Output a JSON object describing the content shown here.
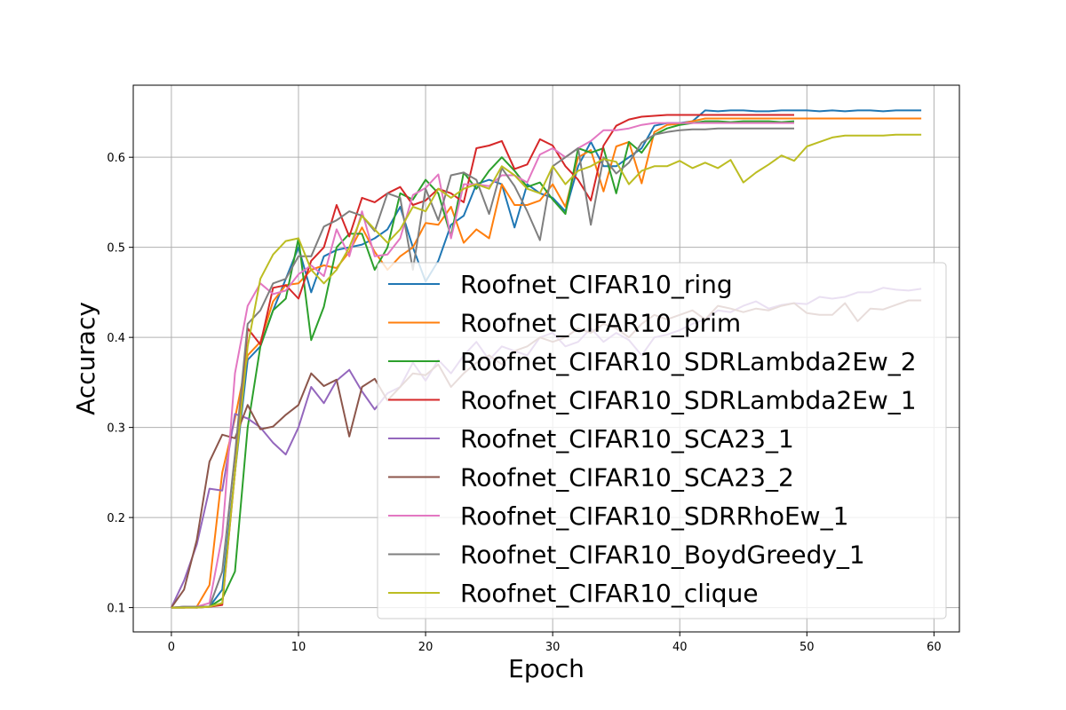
{
  "chart_data": {
    "type": "line",
    "title": "",
    "xlabel": "Epoch",
    "ylabel": "Accuracy",
    "xlim": [
      -3,
      62
    ],
    "ylim": [
      0.073,
      0.68
    ],
    "xticks": [
      0,
      10,
      20,
      30,
      40,
      50,
      60
    ],
    "yticks": [
      0.1,
      0.2,
      0.3,
      0.4,
      0.5,
      0.6
    ],
    "xtick_labels": [
      "0",
      "10",
      "20",
      "30",
      "40",
      "50",
      "60"
    ],
    "ytick_labels": [
      "0.1",
      "0.2",
      "0.3",
      "0.4",
      "0.5",
      "0.6"
    ],
    "grid": true,
    "legend_position": "lower-right",
    "series": [
      {
        "name": "Roofnet_CIFAR10_ring",
        "color": "#1f77b4",
        "values": [
          0.1,
          0.101,
          0.1,
          0.101,
          0.12,
          0.25,
          0.375,
          0.39,
          0.43,
          0.465,
          0.5,
          0.45,
          0.49,
          0.497,
          0.5,
          0.503,
          0.51,
          0.52,
          0.545,
          0.5,
          0.462,
          0.485,
          0.525,
          0.535,
          0.57,
          0.575,
          0.57,
          0.522,
          0.57,
          0.56,
          0.555,
          0.54,
          0.59,
          0.617,
          0.59,
          0.59,
          0.6,
          0.61,
          0.635,
          0.638,
          0.638,
          0.64,
          0.652,
          0.651,
          0.652,
          0.652,
          0.651,
          0.651,
          0.652,
          0.652,
          0.652,
          0.651,
          0.652,
          0.651,
          0.652,
          0.652,
          0.651,
          0.652,
          0.652,
          0.652
        ]
      },
      {
        "name": "Roofnet_CIFAR10_prim",
        "color": "#ff7f0e",
        "values": [
          0.1,
          0.1,
          0.101,
          0.125,
          0.25,
          0.31,
          0.38,
          0.395,
          0.44,
          0.458,
          0.46,
          0.475,
          0.48,
          0.477,
          0.495,
          0.522,
          0.495,
          0.475,
          0.49,
          0.5,
          0.527,
          0.525,
          0.545,
          0.505,
          0.52,
          0.51,
          0.57,
          0.547,
          0.547,
          0.552,
          0.57,
          0.545,
          0.6,
          0.608,
          0.562,
          0.612,
          0.617,
          0.571,
          0.628,
          0.636,
          0.637,
          0.64,
          0.643,
          0.643,
          0.643,
          0.643,
          0.643,
          0.643,
          0.643,
          0.643,
          0.643,
          0.643,
          0.643,
          0.643,
          0.643,
          0.643,
          0.643,
          0.643,
          0.643,
          0.643
        ]
      },
      {
        "name": "Roofnet_CIFAR10_SDRLambda2Ew_2",
        "color": "#2ca02c",
        "values": [
          0.1,
          0.1,
          0.101,
          0.101,
          0.11,
          0.14,
          0.3,
          0.39,
          0.43,
          0.443,
          0.51,
          0.397,
          0.434,
          0.5,
          0.515,
          0.515,
          0.475,
          0.5,
          0.56,
          0.553,
          0.575,
          0.56,
          0.512,
          0.583,
          0.565,
          0.585,
          0.6,
          0.585,
          0.567,
          0.572,
          0.553,
          0.537,
          0.61,
          0.605,
          0.61,
          0.56,
          0.617,
          0.605,
          0.625,
          0.632,
          0.636,
          0.638,
          0.64,
          0.64,
          0.639,
          0.64,
          0.64,
          0.64,
          0.639,
          0.64
        ]
      },
      {
        "name": "Roofnet_CIFAR10_SDRLambda2Ew_1",
        "color": "#d62728",
        "values": [
          0.1,
          0.1,
          0.1,
          0.101,
          0.103,
          0.25,
          0.41,
          0.392,
          0.455,
          0.458,
          0.443,
          0.485,
          0.5,
          0.547,
          0.512,
          0.555,
          0.55,
          0.56,
          0.567,
          0.547,
          0.552,
          0.565,
          0.56,
          0.55,
          0.61,
          0.613,
          0.618,
          0.587,
          0.592,
          0.62,
          0.613,
          0.59,
          0.575,
          0.552,
          0.613,
          0.635,
          0.642,
          0.645,
          0.646,
          0.647,
          0.647,
          0.647,
          0.647,
          0.647,
          0.647,
          0.647,
          0.647,
          0.647,
          0.647,
          0.647
        ]
      },
      {
        "name": "Roofnet_CIFAR10_SCA23_1",
        "color": "#9467bd",
        "values": [
          0.1,
          0.13,
          0.17,
          0.232,
          0.23,
          0.315,
          0.31,
          0.3,
          0.283,
          0.27,
          0.3,
          0.345,
          0.327,
          0.352,
          0.364,
          0.34,
          0.32,
          0.338,
          0.345,
          0.372,
          0.352,
          0.375,
          0.36,
          0.38,
          0.395,
          0.375,
          0.39,
          0.385,
          0.38,
          0.4,
          0.405,
          0.39,
          0.395,
          0.41,
          0.395,
          0.405,
          0.397,
          0.38,
          0.4,
          0.403,
          0.408,
          0.415,
          0.42,
          0.43,
          0.428,
          0.435,
          0.44,
          0.432,
          0.436,
          0.438,
          0.437,
          0.445,
          0.443,
          0.445,
          0.45,
          0.45,
          0.455,
          0.453,
          0.452,
          0.454
        ]
      },
      {
        "name": "Roofnet_CIFAR10_SCA23_2",
        "color": "#8c564b",
        "values": [
          0.1,
          0.12,
          0.175,
          0.262,
          0.292,
          0.288,
          0.325,
          0.298,
          0.301,
          0.314,
          0.325,
          0.36,
          0.346,
          0.353,
          0.29,
          0.345,
          0.354,
          0.33,
          0.345,
          0.36,
          0.358,
          0.37,
          0.345,
          0.36,
          0.372,
          0.38,
          0.37,
          0.385,
          0.39,
          0.4,
          0.395,
          0.4,
          0.41,
          0.405,
          0.415,
          0.41,
          0.4,
          0.415,
          0.425,
          0.42,
          0.425,
          0.43,
          0.42,
          0.435,
          0.432,
          0.428,
          0.432,
          0.43,
          0.435,
          0.438,
          0.427,
          0.425,
          0.425,
          0.438,
          0.418,
          0.432,
          0.431,
          0.436,
          0.441,
          0.441
        ]
      },
      {
        "name": "Roofnet_CIFAR10_SDRRhoEw_1",
        "color": "#e377c2",
        "values": [
          0.1,
          0.101,
          0.101,
          0.105,
          0.18,
          0.36,
          0.435,
          0.46,
          0.448,
          0.452,
          0.47,
          0.48,
          0.468,
          0.52,
          0.49,
          0.54,
          0.49,
          0.492,
          0.51,
          0.558,
          0.566,
          0.581,
          0.51,
          0.57,
          0.57,
          0.568,
          0.58,
          0.58,
          0.572,
          0.603,
          0.61,
          0.6,
          0.61,
          0.618,
          0.63,
          0.63,
          0.632,
          0.636,
          0.638,
          0.638,
          0.638,
          0.638,
          0.638,
          0.638,
          0.638,
          0.638,
          0.638,
          0.638,
          0.638,
          0.638
        ]
      },
      {
        "name": "Roofnet_CIFAR10_BoydGreedy_1",
        "color": "#7f7f7f",
        "values": [
          0.1,
          0.101,
          0.101,
          0.101,
          0.14,
          0.27,
          0.415,
          0.43,
          0.46,
          0.465,
          0.49,
          0.49,
          0.523,
          0.53,
          0.54,
          0.535,
          0.518,
          0.56,
          0.555,
          0.475,
          0.565,
          0.53,
          0.58,
          0.583,
          0.575,
          0.537,
          0.588,
          0.568,
          0.54,
          0.508,
          0.59,
          0.6,
          0.61,
          0.525,
          0.6,
          0.582,
          0.594,
          0.616,
          0.625,
          0.628,
          0.63,
          0.631,
          0.631,
          0.632,
          0.632,
          0.632,
          0.632,
          0.632,
          0.632,
          0.632
        ]
      },
      {
        "name": "Roofnet_CIFAR10_clique",
        "color": "#bcbd22",
        "values": [
          0.1,
          0.1,
          0.1,
          0.101,
          0.105,
          0.25,
          0.39,
          0.465,
          0.492,
          0.507,
          0.51,
          0.475,
          0.46,
          0.475,
          0.5,
          0.535,
          0.52,
          0.505,
          0.52,
          0.545,
          0.54,
          0.565,
          0.555,
          0.565,
          0.57,
          0.565,
          0.59,
          0.58,
          0.565,
          0.56,
          0.59,
          0.57,
          0.585,
          0.59,
          0.598,
          0.595,
          0.57,
          0.585,
          0.59,
          0.59,
          0.596,
          0.588,
          0.594,
          0.588,
          0.597,
          0.572,
          0.583,
          0.592,
          0.602,
          0.596,
          0.612,
          0.617,
          0.622,
          0.624,
          0.624,
          0.624,
          0.624,
          0.625,
          0.625,
          0.625
        ]
      }
    ]
  }
}
